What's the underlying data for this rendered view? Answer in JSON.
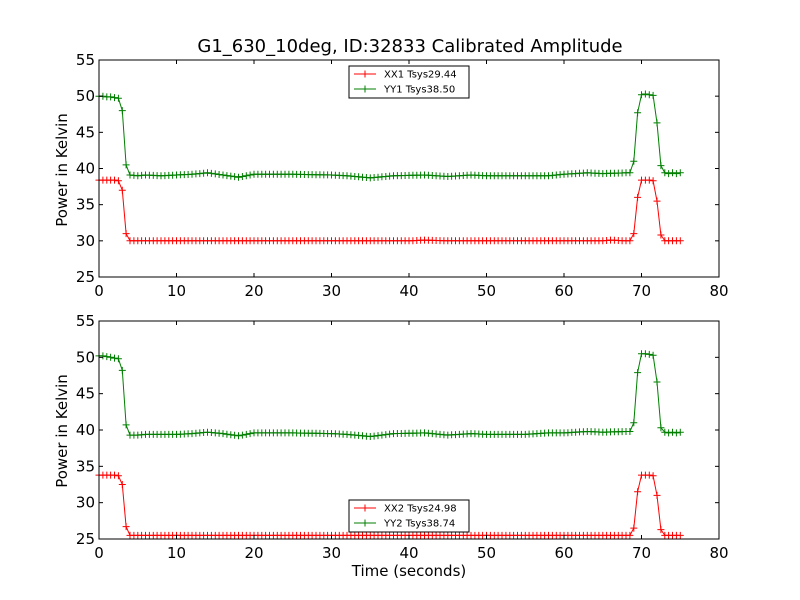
{
  "figure_title": "G1_630_10deg, ID:32833 Calibrated Amplitude",
  "colors": {
    "red": "#ff0000",
    "green": "#007f00",
    "axes": "#000000",
    "background": "#ffffff"
  },
  "chart_data": [
    {
      "type": "line",
      "marker": "plus",
      "xlabel": "",
      "ylabel": "Power in Kelvin",
      "xlim": [
        0,
        80
      ],
      "ylim": [
        25,
        55
      ],
      "xticks": [
        0,
        10,
        20,
        30,
        40,
        50,
        60,
        70,
        80
      ],
      "yticks": [
        25,
        30,
        35,
        40,
        45,
        50,
        55
      ],
      "grid": false,
      "legend_position": "top-center",
      "series": [
        {
          "name": "XX1 Tsys29.44",
          "color": "#ff0000",
          "x": [
            0,
            0.5,
            1,
            1.5,
            2,
            2.5,
            3,
            3.5,
            4,
            5,
            6,
            8,
            10,
            15,
            20,
            25,
            30,
            35,
            40,
            42,
            45,
            50,
            55,
            60,
            65,
            66,
            68,
            68.5,
            69,
            69.5,
            70,
            70.5,
            71,
            71.5,
            72,
            72.5,
            73,
            73.5,
            74,
            74.5,
            75
          ],
          "y": [
            38.4,
            38.4,
            38.4,
            38.4,
            38.4,
            38.3,
            37,
            31,
            30,
            30,
            30,
            30,
            30,
            30,
            30,
            30,
            30,
            30,
            30,
            30.1,
            30,
            30,
            30,
            30,
            30,
            30.1,
            30,
            30,
            31,
            36,
            38.4,
            38.4,
            38.4,
            38.3,
            35.5,
            30.8,
            30,
            30,
            30,
            30,
            30
          ]
        },
        {
          "name": "YY1 Tsys38.50",
          "color": "#007f00",
          "x": [
            0,
            0.5,
            1,
            1.5,
            2,
            2.5,
            3,
            3.5,
            4,
            5,
            6,
            8,
            10,
            12,
            14,
            16,
            18,
            20,
            25,
            30,
            32,
            35,
            38,
            42,
            45,
            48,
            50,
            55,
            58,
            60,
            63,
            65,
            68,
            68.5,
            69,
            69.5,
            70,
            70.5,
            71,
            71.5,
            72,
            72.5,
            73,
            73.5,
            74,
            74.5,
            75
          ],
          "y": [
            50,
            50,
            49.9,
            49.9,
            49.8,
            49.7,
            48,
            40.5,
            39.1,
            39,
            39.1,
            39,
            39.1,
            39.2,
            39.4,
            39.1,
            38.8,
            39.2,
            39.2,
            39.1,
            39,
            38.7,
            39,
            39.1,
            38.9,
            39.1,
            39,
            39,
            39,
            39.2,
            39.4,
            39.3,
            39.4,
            39.4,
            41,
            47.7,
            50.2,
            50.3,
            50.2,
            50.1,
            46.3,
            40.4,
            39.4,
            39.3,
            39.4,
            39.3,
            39.4
          ]
        }
      ]
    },
    {
      "type": "line",
      "marker": "plus",
      "xlabel": "Time (seconds)",
      "ylabel": "Power in Kelvin",
      "xlim": [
        0,
        80
      ],
      "ylim": [
        25,
        55
      ],
      "xticks": [
        0,
        10,
        20,
        30,
        40,
        50,
        60,
        70,
        80
      ],
      "yticks": [
        25,
        30,
        35,
        40,
        45,
        50,
        55
      ],
      "grid": false,
      "legend_position": "bottom-center",
      "series": [
        {
          "name": "XX2 Tsys24.98",
          "color": "#ff0000",
          "x": [
            0,
            0.5,
            1,
            1.5,
            2,
            2.5,
            3,
            3.5,
            4,
            5,
            6,
            8,
            10,
            15,
            20,
            25,
            30,
            35,
            40,
            45,
            50,
            55,
            60,
            65,
            68,
            68.5,
            69,
            69.5,
            70,
            70.5,
            71,
            71.5,
            72,
            72.5,
            73,
            73.5,
            74,
            74.5,
            75
          ],
          "y": [
            33.8,
            33.8,
            33.8,
            33.8,
            33.8,
            33.7,
            32.5,
            26.7,
            25.5,
            25.5,
            25.5,
            25.5,
            25.5,
            25.5,
            25.5,
            25.5,
            25.5,
            25.5,
            25.5,
            25.5,
            25.5,
            25.5,
            25.5,
            25.5,
            25.5,
            25.5,
            26.5,
            31.5,
            33.8,
            33.8,
            33.8,
            33.7,
            31,
            26.3,
            25.5,
            25.5,
            25.5,
            25.5,
            25.5
          ]
        },
        {
          "name": "YY2 Tsys38.74",
          "color": "#007f00",
          "x": [
            0,
            0.5,
            1,
            1.5,
            2,
            2.5,
            3,
            3.5,
            4,
            5,
            6,
            8,
            10,
            12,
            14,
            16,
            18,
            20,
            25,
            30,
            32,
            35,
            38,
            42,
            45,
            48,
            50,
            55,
            58,
            60,
            63,
            65,
            68,
            68.5,
            69,
            69.5,
            70,
            70.5,
            71,
            71.5,
            72,
            72.5,
            73,
            73.5,
            74,
            74.5,
            75
          ],
          "y": [
            50.2,
            50.2,
            50.1,
            50,
            49.9,
            49.8,
            48.2,
            40.7,
            39.3,
            39.3,
            39.4,
            39.4,
            39.4,
            39.5,
            39.7,
            39.5,
            39.2,
            39.6,
            39.6,
            39.5,
            39.4,
            39.1,
            39.5,
            39.6,
            39.3,
            39.5,
            39.4,
            39.4,
            39.6,
            39.6,
            39.8,
            39.7,
            39.8,
            39.8,
            41,
            47.9,
            50.5,
            50.5,
            50.4,
            50.3,
            46.6,
            40.3,
            39.7,
            39.6,
            39.7,
            39.6,
            39.7
          ]
        }
      ]
    }
  ]
}
